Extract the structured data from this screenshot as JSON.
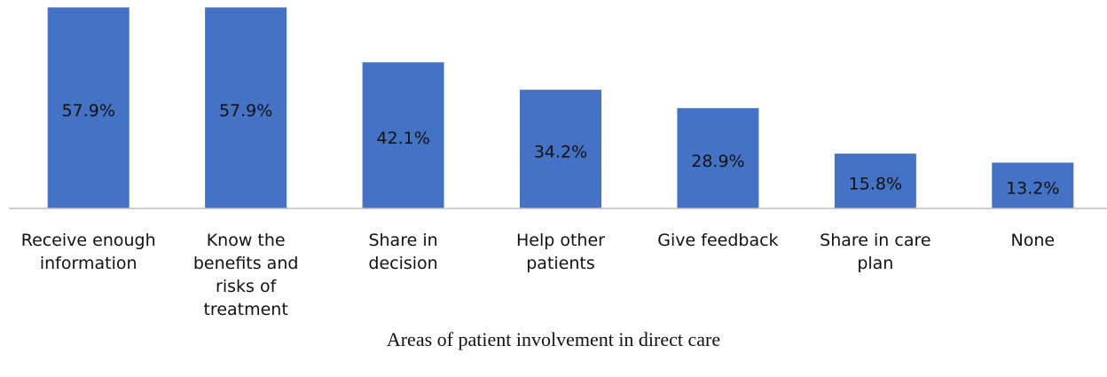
{
  "chart_data": {
    "type": "bar",
    "x_label": "Areas of patient involvement in direct care",
    "categories": [
      "Receive enough information",
      "Know the benefits and risks of treatment",
      "Share in decision",
      "Help other patients",
      "Give feedback",
      "Share in care plan",
      "None"
    ],
    "values": [
      57.9,
      57.9,
      42.1,
      34.2,
      28.9,
      15.8,
      13.2
    ],
    "value_labels": [
      "57.9%",
      "57.9%",
      "42.1%",
      "34.2%",
      "28.9%",
      "15.8%",
      "13.2%"
    ],
    "color": "#4472c4",
    "ylim": [
      0,
      58
    ]
  }
}
